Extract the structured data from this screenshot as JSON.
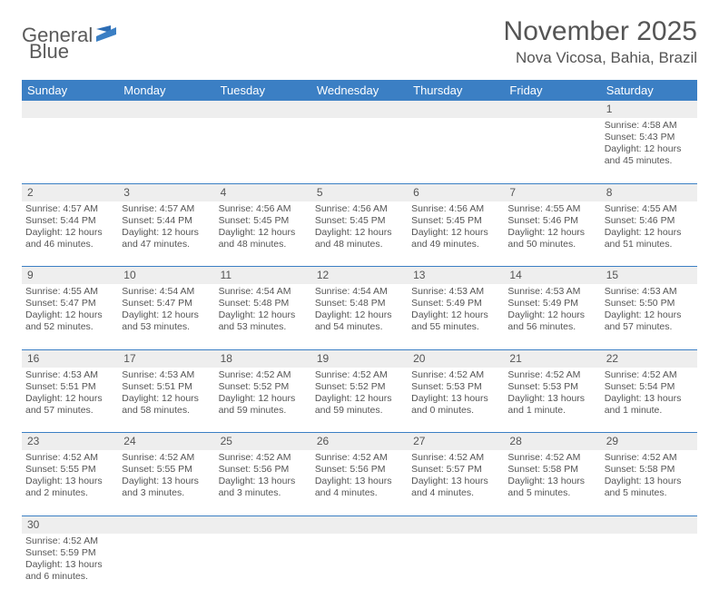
{
  "logo": {
    "text1": "General",
    "text2": "Blue"
  },
  "title": "November 2025",
  "location": "Nova Vicosa, Bahia, Brazil",
  "colors": {
    "header_bg": "#3b7fc4",
    "header_text": "#ffffff",
    "daynum_bg": "#eeeeee",
    "row_border": "#3b7fc4",
    "text": "#555555",
    "background": "#ffffff"
  },
  "day_headers": [
    "Sunday",
    "Monday",
    "Tuesday",
    "Wednesday",
    "Thursday",
    "Friday",
    "Saturday"
  ],
  "weeks": [
    {
      "nums": [
        "",
        "",
        "",
        "",
        "",
        "",
        "1"
      ],
      "cells": [
        null,
        null,
        null,
        null,
        null,
        null,
        {
          "sunrise": "4:58 AM",
          "sunset": "5:43 PM",
          "daylight": "12 hours and 45 minutes."
        }
      ]
    },
    {
      "nums": [
        "2",
        "3",
        "4",
        "5",
        "6",
        "7",
        "8"
      ],
      "cells": [
        {
          "sunrise": "4:57 AM",
          "sunset": "5:44 PM",
          "daylight": "12 hours and 46 minutes."
        },
        {
          "sunrise": "4:57 AM",
          "sunset": "5:44 PM",
          "daylight": "12 hours and 47 minutes."
        },
        {
          "sunrise": "4:56 AM",
          "sunset": "5:45 PM",
          "daylight": "12 hours and 48 minutes."
        },
        {
          "sunrise": "4:56 AM",
          "sunset": "5:45 PM",
          "daylight": "12 hours and 48 minutes."
        },
        {
          "sunrise": "4:56 AM",
          "sunset": "5:45 PM",
          "daylight": "12 hours and 49 minutes."
        },
        {
          "sunrise": "4:55 AM",
          "sunset": "5:46 PM",
          "daylight": "12 hours and 50 minutes."
        },
        {
          "sunrise": "4:55 AM",
          "sunset": "5:46 PM",
          "daylight": "12 hours and 51 minutes."
        }
      ]
    },
    {
      "nums": [
        "9",
        "10",
        "11",
        "12",
        "13",
        "14",
        "15"
      ],
      "cells": [
        {
          "sunrise": "4:55 AM",
          "sunset": "5:47 PM",
          "daylight": "12 hours and 52 minutes."
        },
        {
          "sunrise": "4:54 AM",
          "sunset": "5:47 PM",
          "daylight": "12 hours and 53 minutes."
        },
        {
          "sunrise": "4:54 AM",
          "sunset": "5:48 PM",
          "daylight": "12 hours and 53 minutes."
        },
        {
          "sunrise": "4:54 AM",
          "sunset": "5:48 PM",
          "daylight": "12 hours and 54 minutes."
        },
        {
          "sunrise": "4:53 AM",
          "sunset": "5:49 PM",
          "daylight": "12 hours and 55 minutes."
        },
        {
          "sunrise": "4:53 AM",
          "sunset": "5:49 PM",
          "daylight": "12 hours and 56 minutes."
        },
        {
          "sunrise": "4:53 AM",
          "sunset": "5:50 PM",
          "daylight": "12 hours and 57 minutes."
        }
      ]
    },
    {
      "nums": [
        "16",
        "17",
        "18",
        "19",
        "20",
        "21",
        "22"
      ],
      "cells": [
        {
          "sunrise": "4:53 AM",
          "sunset": "5:51 PM",
          "daylight": "12 hours and 57 minutes."
        },
        {
          "sunrise": "4:53 AM",
          "sunset": "5:51 PM",
          "daylight": "12 hours and 58 minutes."
        },
        {
          "sunrise": "4:52 AM",
          "sunset": "5:52 PM",
          "daylight": "12 hours and 59 minutes."
        },
        {
          "sunrise": "4:52 AM",
          "sunset": "5:52 PM",
          "daylight": "12 hours and 59 minutes."
        },
        {
          "sunrise": "4:52 AM",
          "sunset": "5:53 PM",
          "daylight": "13 hours and 0 minutes."
        },
        {
          "sunrise": "4:52 AM",
          "sunset": "5:53 PM",
          "daylight": "13 hours and 1 minute."
        },
        {
          "sunrise": "4:52 AM",
          "sunset": "5:54 PM",
          "daylight": "13 hours and 1 minute."
        }
      ]
    },
    {
      "nums": [
        "23",
        "24",
        "25",
        "26",
        "27",
        "28",
        "29"
      ],
      "cells": [
        {
          "sunrise": "4:52 AM",
          "sunset": "5:55 PM",
          "daylight": "13 hours and 2 minutes."
        },
        {
          "sunrise": "4:52 AM",
          "sunset": "5:55 PM",
          "daylight": "13 hours and 3 minutes."
        },
        {
          "sunrise": "4:52 AM",
          "sunset": "5:56 PM",
          "daylight": "13 hours and 3 minutes."
        },
        {
          "sunrise": "4:52 AM",
          "sunset": "5:56 PM",
          "daylight": "13 hours and 4 minutes."
        },
        {
          "sunrise": "4:52 AM",
          "sunset": "5:57 PM",
          "daylight": "13 hours and 4 minutes."
        },
        {
          "sunrise": "4:52 AM",
          "sunset": "5:58 PM",
          "daylight": "13 hours and 5 minutes."
        },
        {
          "sunrise": "4:52 AM",
          "sunset": "5:58 PM",
          "daylight": "13 hours and 5 minutes."
        }
      ]
    },
    {
      "nums": [
        "30",
        "",
        "",
        "",
        "",
        "",
        ""
      ],
      "cells": [
        {
          "sunrise": "4:52 AM",
          "sunset": "5:59 PM",
          "daylight": "13 hours and 6 minutes."
        },
        null,
        null,
        null,
        null,
        null,
        null
      ]
    }
  ],
  "labels": {
    "sunrise": "Sunrise:",
    "sunset": "Sunset:",
    "daylight": "Daylight:"
  }
}
